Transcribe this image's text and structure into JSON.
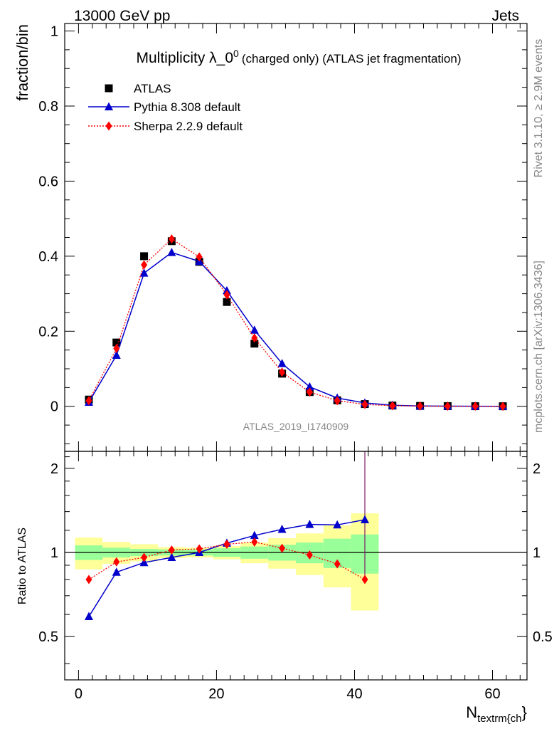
{
  "header": {
    "energy_label": "13000 GeV pp",
    "category_label": "Jets"
  },
  "side_text": {
    "rivet": "Rivet 3.1.10, ≥ 2.9M events",
    "source": "mcplots.cern.ch [arXiv:1306.3436]"
  },
  "chart_data": [
    {
      "type": "line",
      "title_main": "Multiplicity λ_0",
      "title_sup": "0",
      "title_tail": "(charged only) (ATLAS jet fragmentation)",
      "ylabel": "fraction/bin",
      "xlabel_main": "N",
      "xlabel_sub": "textrm{ch",
      "xlabel_tail": "}",
      "watermark": "ATLAS_2019_I1740909",
      "xlim": [
        -2,
        65
      ],
      "ylim": [
        -0.12,
        1.02
      ],
      "yticks": [
        0,
        0.2,
        0.4,
        0.6,
        0.8,
        1
      ],
      "ytick_labels": [
        "0",
        "0.2",
        "0.4",
        "0.6",
        "0.8",
        "1"
      ],
      "xticks": [
        0,
        20,
        40,
        60
      ],
      "xtick_labels": [
        "0",
        "20",
        "40",
        "60"
      ],
      "legend_position": "top-left",
      "x": [
        1.5,
        5.5,
        9.5,
        13.5,
        17.5,
        21.5,
        25.5,
        29.5,
        33.5,
        37.5,
        41.5,
        45.5,
        49.5,
        53.5,
        57.5,
        61.5
      ],
      "series": [
        {
          "name": "ATLAS",
          "color": "#000000",
          "marker": "square",
          "line": "none",
          "values": [
            0.018,
            0.17,
            0.4,
            0.44,
            0.385,
            0.278,
            0.167,
            0.087,
            0.038,
            0.016,
            0.006,
            0.002,
            0.001,
            0.0005,
            0.0003,
            0.0002
          ]
        },
        {
          "name": "Pythia 8.308 default",
          "color": "#0000cc",
          "marker": "triangle",
          "line": "solid",
          "values": [
            0.011,
            0.136,
            0.355,
            0.41,
            0.386,
            0.308,
            0.203,
            0.114,
            0.052,
            0.022,
            0.009,
            0.003,
            0.001,
            0.0005,
            0.0002,
            0.0001
          ]
        },
        {
          "name": "Sherpa 2.2.9 default",
          "color": "#ff0000",
          "marker": "diamond",
          "line": "dotted",
          "values": [
            0.015,
            0.154,
            0.377,
            0.446,
            0.398,
            0.297,
            0.182,
            0.091,
            0.038,
            0.015,
            0.005,
            0.0015,
            0.0006,
            0.0002,
            0.0001,
            5e-05
          ]
        }
      ]
    },
    {
      "type": "line",
      "ylabel": "Ratio to ATLAS",
      "xlim": [
        -2,
        65
      ],
      "ylim": [
        0.35,
        2.3
      ],
      "yticks": [
        0.5,
        1,
        2
      ],
      "ytick_labels": [
        "0.5",
        "1",
        "2"
      ],
      "reference_line": 1,
      "x": [
        1.5,
        5.5,
        9.5,
        13.5,
        17.5,
        21.5,
        25.5,
        29.5,
        33.5,
        37.5,
        41.5
      ],
      "bands": {
        "edges": [
          -0.5,
          3.5,
          7.5,
          11.5,
          15.5,
          19.5,
          23.5,
          27.5,
          31.5,
          35.5,
          39.5,
          43.5
        ],
        "green_lo": [
          0.94,
          0.96,
          0.97,
          0.975,
          0.975,
          0.965,
          0.95,
          0.935,
          0.915,
          0.88,
          0.84
        ],
        "green_hi": [
          1.06,
          1.04,
          1.03,
          1.025,
          1.025,
          1.035,
          1.05,
          1.065,
          1.085,
          1.12,
          1.16
        ],
        "yellow_lo": [
          0.87,
          0.91,
          0.93,
          0.955,
          0.96,
          0.945,
          0.915,
          0.875,
          0.83,
          0.75,
          0.62
        ],
        "yellow_hi": [
          1.13,
          1.09,
          1.07,
          1.045,
          1.04,
          1.055,
          1.085,
          1.125,
          1.17,
          1.25,
          1.38
        ],
        "green_color": "#99ff99",
        "yellow_color": "#ffff99"
      },
      "series": [
        {
          "name": "Pythia 8.308 default",
          "color": "#0000cc",
          "marker": "triangle",
          "line": "solid",
          "values": [
            0.59,
            0.85,
            0.92,
            0.96,
            1.0,
            1.08,
            1.15,
            1.21,
            1.26,
            1.255,
            1.31
          ]
        },
        {
          "name": "Sherpa 2.2.9 default",
          "color": "#ff0000",
          "marker": "diamond",
          "line": "dotted",
          "values": [
            0.8,
            0.925,
            0.96,
            1.02,
            1.03,
            1.07,
            1.09,
            1.035,
            0.98,
            0.91,
            0.8
          ]
        }
      ]
    }
  ]
}
